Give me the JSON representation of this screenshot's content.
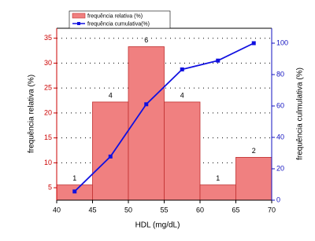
{
  "chart_data": {
    "type": "histogram",
    "x_label": "HDL (mg/dL)",
    "y_label": "frequência relativa (%)",
    "y2_label": "frequência culmulativa (%)",
    "bins": [
      40,
      45,
      50,
      55,
      60,
      65,
      70
    ],
    "xlim": [
      40,
      70
    ],
    "xticks": [
      40,
      45,
      50,
      55,
      60,
      65,
      70
    ],
    "ylim": [
      2.5,
      37
    ],
    "yticks": [
      5,
      10,
      15,
      20,
      25,
      30,
      35
    ],
    "y2lim": [
      0,
      109.5
    ],
    "y2ticks": [
      0,
      20,
      40,
      60,
      80,
      100
    ],
    "grid": true,
    "series": [
      {
        "name": "frequência relativa (%)",
        "color": "#f08080",
        "values": [
          5.56,
          22.2,
          33.3,
          22.2,
          5.56,
          11.1
        ],
        "counts": [
          1,
          4,
          6,
          4,
          1,
          2
        ]
      },
      {
        "name": "frequência cumulativa(%)",
        "color": "#1010e0",
        "type": "line",
        "axis": "y2",
        "x": [
          42.5,
          47.5,
          52.5,
          57.5,
          62.5,
          67.5
        ],
        "values": [
          5.56,
          27.8,
          61.1,
          83.3,
          88.9,
          100
        ]
      }
    ]
  }
}
